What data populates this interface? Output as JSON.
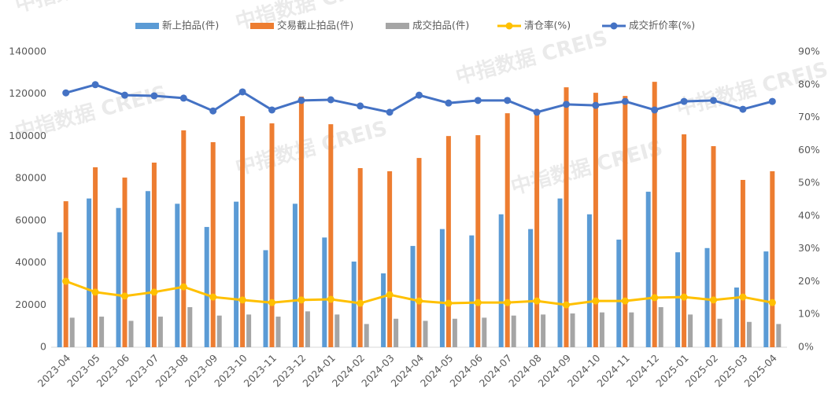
{
  "chart_data": {
    "type": "bar",
    "watermark": "中指数据 CREIS",
    "categories": [
      "2023-04",
      "2023-05",
      "2023-06",
      "2023-07",
      "2023-08",
      "2023-09",
      "2023-10",
      "2023-11",
      "2023-12",
      "2024-01",
      "2024-02",
      "2024-03",
      "2024-04",
      "2024-05",
      "2024-06",
      "2024-07",
      "2024-08",
      "2024-09",
      "2024-10",
      "2024-11",
      "2024-12",
      "2025-01",
      "2025-02",
      "2025-03",
      "2025-04"
    ],
    "series": [
      {
        "name": "新上拍品(件)",
        "color": "#5b9bd5",
        "type": "bar",
        "values": [
          54500,
          70500,
          66000,
          74000,
          68000,
          57000,
          69000,
          46000,
          68000,
          52000,
          40600,
          35000,
          48000,
          56000,
          53000,
          63000,
          56000,
          70500,
          63000,
          51000,
          73700,
          45000,
          47000,
          28300,
          45400
        ]
      },
      {
        "name": "交易截止拍品(件)",
        "color": "#ed7d31",
        "type": "bar",
        "values": [
          69200,
          85300,
          80400,
          87500,
          102800,
          97200,
          109500,
          106100,
          118800,
          105700,
          84900,
          83400,
          89700,
          100100,
          100500,
          110900,
          112400,
          123200,
          120600,
          119100,
          125800,
          100900,
          95300,
          79300,
          83400
        ]
      },
      {
        "name": "成交拍品(件)",
        "color": "#a5a5a5",
        "type": "bar",
        "values": [
          14000,
          14500,
          12500,
          14500,
          19000,
          15000,
          15500,
          14500,
          17000,
          15500,
          11000,
          13500,
          12500,
          13500,
          14000,
          15000,
          15500,
          16000,
          16500,
          16500,
          19000,
          15500,
          13500,
          12000,
          11000
        ]
      },
      {
        "name": "清仓率(%)",
        "color": "#ffc000",
        "type": "line",
        "axis": "y2",
        "values": [
          20.1,
          16.8,
          15.6,
          16.8,
          18.4,
          15.3,
          14.4,
          13.6,
          14.4,
          14.6,
          13.4,
          16,
          14.1,
          13.4,
          13.6,
          13.6,
          14.1,
          12.9,
          14.1,
          14.1,
          15.1,
          15.3,
          14.4,
          15.3,
          13.6
        ]
      },
      {
        "name": "成交折价率(%)",
        "color": "#4472c4",
        "type": "line",
        "axis": "y2",
        "values": [
          77.5,
          80,
          76.8,
          76.6,
          75.9,
          72,
          77.8,
          72.3,
          75.2,
          75.4,
          73.5,
          71.6,
          76.8,
          74.4,
          75.2,
          75.2,
          71.6,
          74,
          73.7,
          74.9,
          72.3,
          74.9,
          75.2,
          72.5,
          74.9
        ]
      }
    ],
    "ylim": [
      0,
      140000
    ],
    "yticks": [
      0,
      20000,
      40000,
      60000,
      80000,
      100000,
      120000,
      140000
    ],
    "y2lim": [
      0,
      90
    ],
    "y2ticks": [
      {
        "value": 0,
        "label": "0%"
      },
      {
        "value": 10,
        "label": "10%"
      },
      {
        "value": 20,
        "label": "20%"
      },
      {
        "value": 30,
        "label": "30%"
      },
      {
        "value": 40,
        "label": "40%"
      },
      {
        "value": 50,
        "label": "50%"
      },
      {
        "value": 60,
        "label": "60%"
      },
      {
        "value": 70,
        "label": "70%"
      },
      {
        "value": 80,
        "label": "80%"
      },
      {
        "value": 90,
        "label": "90%"
      }
    ]
  }
}
